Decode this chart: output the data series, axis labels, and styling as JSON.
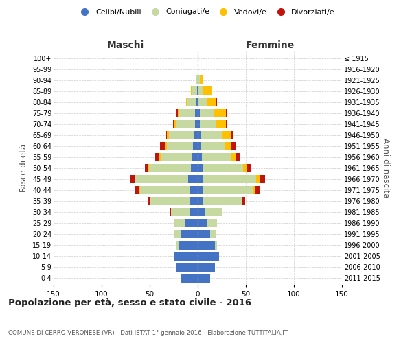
{
  "age_groups": [
    "0-4",
    "5-9",
    "10-14",
    "15-19",
    "20-24",
    "25-29",
    "30-34",
    "35-39",
    "40-44",
    "45-49",
    "50-54",
    "55-59",
    "60-64",
    "65-69",
    "70-74",
    "75-79",
    "80-84",
    "85-89",
    "90-94",
    "95-99",
    "100+"
  ],
  "birth_years": [
    "2011-2015",
    "2006-2010",
    "2001-2005",
    "1996-2000",
    "1991-1995",
    "1986-1990",
    "1981-1985",
    "1976-1980",
    "1971-1975",
    "1966-1970",
    "1961-1965",
    "1956-1960",
    "1951-1955",
    "1946-1950",
    "1941-1945",
    "1936-1940",
    "1931-1935",
    "1926-1930",
    "1921-1925",
    "1916-1920",
    "≤ 1915"
  ],
  "maschi": {
    "celibi": [
      18,
      22,
      25,
      20,
      17,
      13,
      8,
      8,
      8,
      10,
      7,
      6,
      5,
      4,
      3,
      3,
      2,
      1,
      0,
      0,
      0
    ],
    "coniugati": [
      0,
      0,
      0,
      2,
      7,
      12,
      20,
      42,
      52,
      55,
      44,
      32,
      27,
      26,
      19,
      16,
      9,
      5,
      2,
      0,
      0
    ],
    "vedovi": [
      0,
      0,
      0,
      0,
      0,
      0,
      0,
      0,
      1,
      1,
      1,
      2,
      2,
      2,
      2,
      2,
      1,
      1,
      0,
      0,
      0
    ],
    "divorziati": [
      0,
      0,
      0,
      0,
      0,
      0,
      1,
      2,
      4,
      5,
      3,
      4,
      5,
      1,
      2,
      2,
      0,
      0,
      0,
      0,
      0
    ]
  },
  "femmine": {
    "nubili": [
      13,
      18,
      22,
      18,
      13,
      10,
      7,
      6,
      5,
      6,
      5,
      4,
      3,
      3,
      2,
      2,
      1,
      1,
      0,
      0,
      0
    ],
    "coniugate": [
      0,
      0,
      0,
      2,
      6,
      10,
      18,
      40,
      52,
      55,
      42,
      30,
      25,
      23,
      17,
      15,
      8,
      5,
      2,
      0,
      0
    ],
    "vedove": [
      0,
      0,
      0,
      0,
      0,
      0,
      0,
      0,
      2,
      3,
      4,
      5,
      6,
      9,
      10,
      12,
      10,
      9,
      4,
      1,
      0
    ],
    "divorziate": [
      0,
      0,
      0,
      0,
      0,
      0,
      1,
      3,
      6,
      6,
      5,
      5,
      5,
      2,
      2,
      2,
      1,
      0,
      0,
      0,
      0
    ]
  },
  "colors": {
    "celibi": "#4472c4",
    "coniugati": "#c5d9a0",
    "vedovi": "#ffc000",
    "divorziati": "#c0140c"
  },
  "legend_labels": [
    "Celibi/Nubili",
    "Coniugati/e",
    "Vedovi/e",
    "Divorziati/e"
  ],
  "title": "Popolazione per età, sesso e stato civile - 2016",
  "subtitle": "COMUNE DI CERRO VERONESE (VR) - Dati ISTAT 1° gennaio 2016 - Elaborazione TUTTITALIA.IT",
  "xlabel_left": "Maschi",
  "xlabel_right": "Femmine",
  "ylabel_left": "Fasce di età",
  "ylabel_right": "Anni di nascita",
  "xlim": 150,
  "background_color": "#ffffff",
  "grid_color": "#cccccc"
}
